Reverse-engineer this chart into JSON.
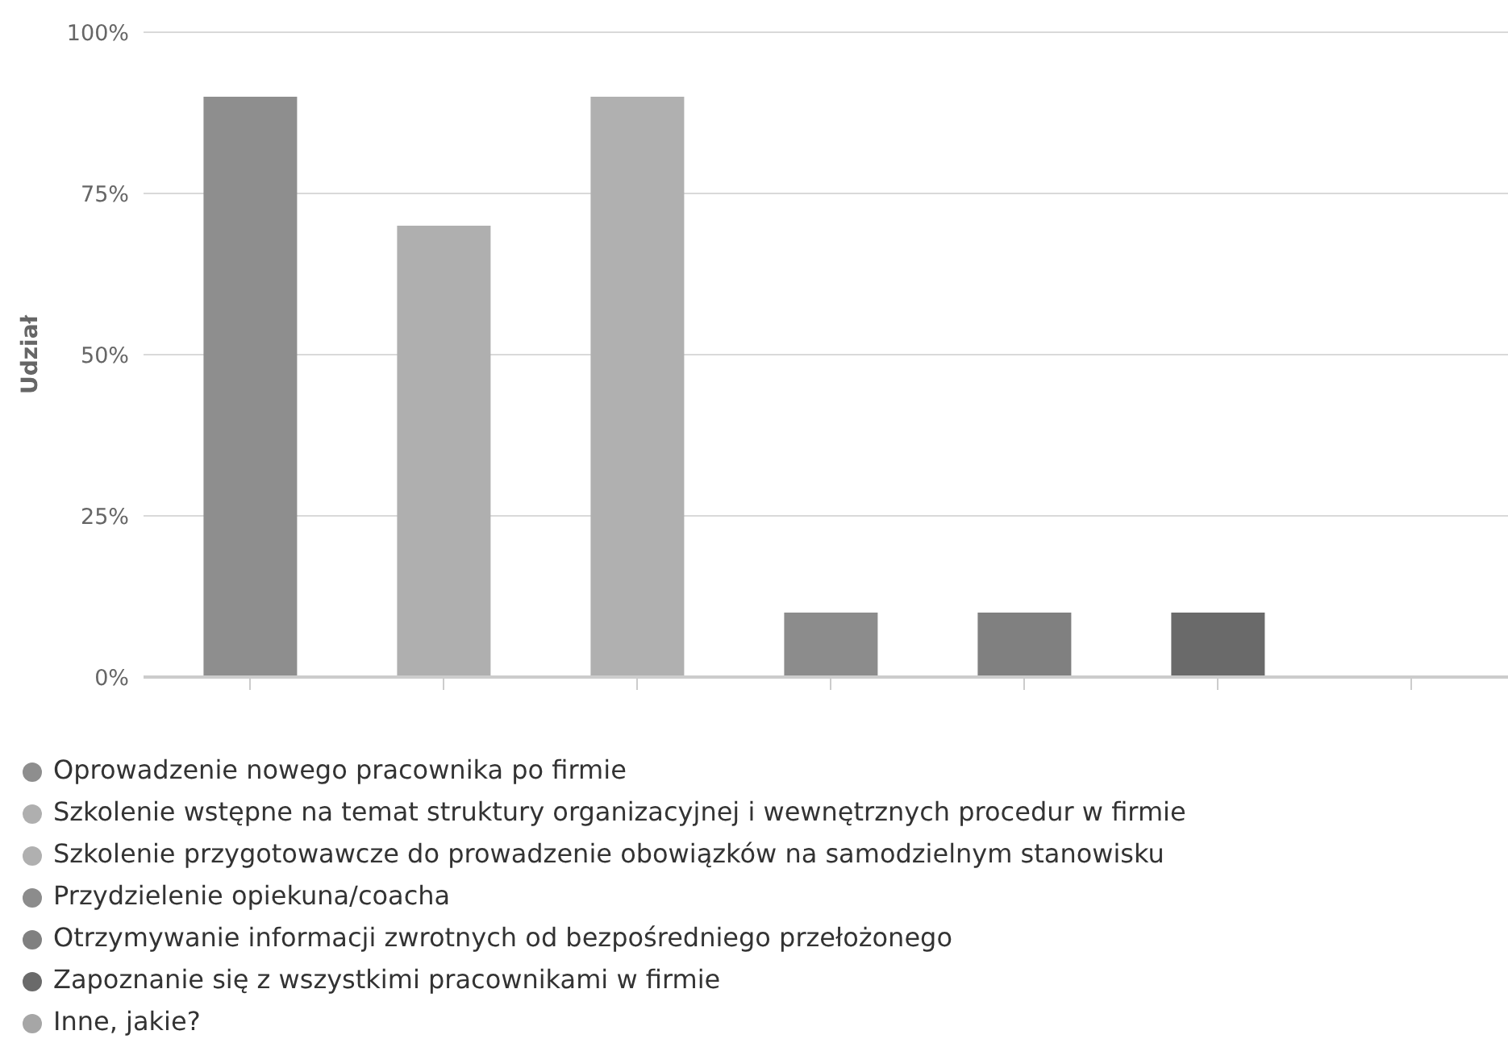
{
  "chart_data": {
    "type": "bar",
    "ylabel": "Udział",
    "categories": [
      null,
      null,
      null,
      null,
      null,
      null,
      null
    ],
    "series": [
      {
        "name": "Oprowadzenie nowego pracownika po firmie",
        "color": "#8e8e8e",
        "values": [
          90,
          null,
          null,
          null,
          null,
          null,
          null
        ]
      },
      {
        "name": "Szkolenie wstępne na temat struktury organizacyjnej i wewnętrznych procedur w firmie",
        "color": "#afafaf",
        "values": [
          null,
          70,
          null,
          null,
          null,
          null,
          null
        ]
      },
      {
        "name": "Szkolenie przygotowawcze do prowadzenie obowiązków na samodzielnym stanowisku",
        "color": "#b0b0b0",
        "values": [
          null,
          null,
          90,
          null,
          null,
          null,
          null
        ]
      },
      {
        "name": "Przydzielenie opiekuna/coacha",
        "color": "#8c8c8c",
        "values": [
          null,
          null,
          null,
          10,
          null,
          null,
          null
        ]
      },
      {
        "name": "Otrzymywanie informacji zwrotnych od bezpośredniego przełożonego",
        "color": "#808080",
        "values": [
          null,
          null,
          null,
          null,
          10,
          null,
          null
        ]
      },
      {
        "name": "Zapoznanie się z wszystkimi pracownikami w firmie",
        "color": "#6a6a6a",
        "values": [
          null,
          null,
          null,
          null,
          null,
          10,
          null
        ]
      },
      {
        "name": "Inne, jakie?",
        "color": "#a6a6a6",
        "values": [
          null,
          null,
          null,
          null,
          null,
          null,
          0
        ]
      }
    ],
    "ylim": [
      0,
      100
    ],
    "yticks": [
      {
        "value": 0,
        "label": "0%"
      },
      {
        "value": 25,
        "label": "25%"
      },
      {
        "value": 50,
        "label": "50%"
      },
      {
        "value": 75,
        "label": "75%"
      },
      {
        "value": 100,
        "label": "100%"
      }
    ],
    "grid": "y",
    "legend": "bottom"
  }
}
